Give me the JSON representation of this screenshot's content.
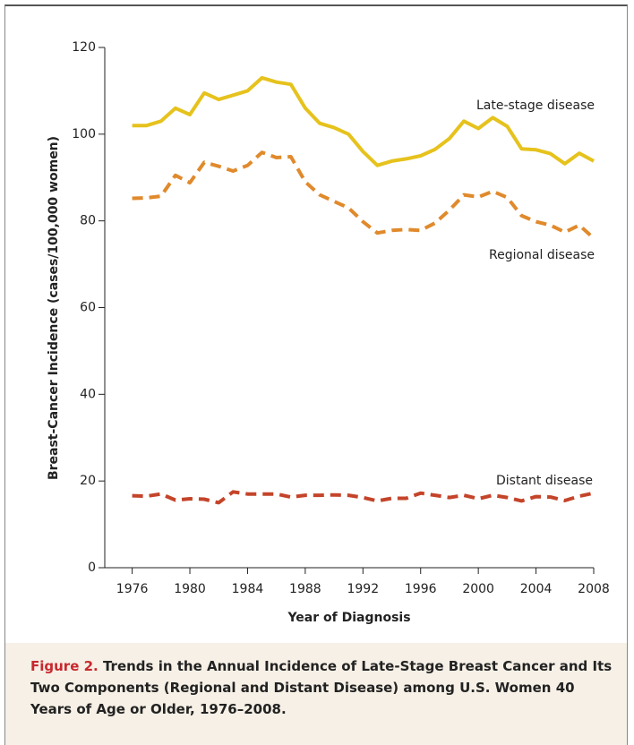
{
  "chart_data": {
    "type": "line",
    "x": [
      1976,
      1977,
      1978,
      1979,
      1980,
      1981,
      1982,
      1983,
      1984,
      1985,
      1986,
      1987,
      1988,
      1989,
      1990,
      1991,
      1992,
      1993,
      1994,
      1995,
      1996,
      1997,
      1998,
      1999,
      2000,
      2001,
      2002,
      2003,
      2004,
      2005,
      2006,
      2007,
      2008
    ],
    "series": [
      {
        "name": "Late-stage disease",
        "color": "#e6c21c",
        "dash": false,
        "values": [
          102,
          102,
          103,
          106,
          104.5,
          109.5,
          108,
          109,
          110,
          113,
          112,
          111.5,
          106,
          102.5,
          101.5,
          100,
          96,
          92.8,
          93.8,
          94.3,
          95,
          96.5,
          99,
          103,
          101.3,
          103.8,
          101.8,
          96.6,
          96.4,
          95.5,
          93.2,
          95.6,
          93.8
        ]
      },
      {
        "name": "Regional disease",
        "color": "#e08a2c",
        "dash": true,
        "values": [
          85.2,
          85.3,
          85.7,
          90.5,
          88.8,
          93.5,
          92.6,
          91.5,
          92.8,
          95.8,
          94.6,
          94.8,
          89,
          86,
          84.5,
          83,
          79.8,
          77.2,
          77.8,
          78,
          77.8,
          79.5,
          82.5,
          86,
          85.5,
          86.8,
          85.4,
          81.2,
          79.8,
          79,
          77.4,
          79,
          76
        ]
      },
      {
        "name": "Distant disease",
        "color": "#c4442a",
        "dash": true,
        "values": [
          16.6,
          16.5,
          17,
          15.6,
          15.9,
          15.8,
          15,
          17.5,
          17,
          17,
          17,
          16.3,
          16.7,
          16.7,
          16.8,
          16.7,
          16.2,
          15.4,
          16,
          16,
          17.2,
          16.7,
          16.2,
          16.7,
          15.9,
          16.7,
          16.2,
          15.4,
          16.4,
          16.3,
          15.5,
          16.5,
          17.2
        ]
      }
    ],
    "xlabel": "Year of Diagnosis",
    "ylabel": "Breast-Cancer Incidence (cases/100,000 women)",
    "xlim": [
      1974.1,
      2008
    ],
    "xticks": [
      1976,
      1980,
      1984,
      1988,
      1992,
      1996,
      2000,
      2004,
      2008
    ],
    "ylim": [
      0,
      120
    ],
    "yticks": [
      0,
      20,
      40,
      60,
      80,
      100,
      120
    ]
  },
  "caption": {
    "label": "Figure 2.",
    "text": "Trends in the Annual Incidence of Late-Stage Breast Cancer and Its Two Components (Regional and Distant Disease) among U.S. Women 40 Years of Age or Older, 1976–2008."
  }
}
